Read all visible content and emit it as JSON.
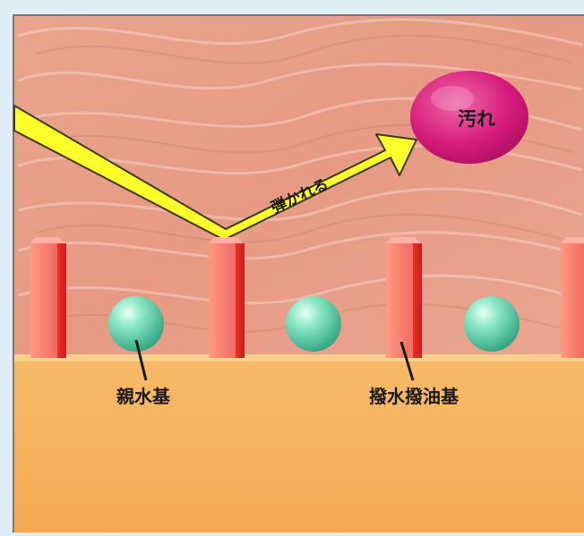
{
  "diagram": {
    "labels": {
      "repelled": "弾かれる",
      "dirt": "汚れ",
      "hydrophilic_group": "親水基",
      "water_oil_repellent_group": "撥水撥油基"
    },
    "colors": {
      "page_background": "#dfeef5",
      "upper_region": "#e9a38a",
      "lower_region": "#f6b25e",
      "arrow_fill": "#ffff2a",
      "arrow_outline": "#3a3a2a",
      "dirt_fill": "#d61a7a",
      "pillar_face": "#f06b5e",
      "pillar_side": "#e8342f",
      "sphere_fill": "#5fd6b0",
      "text": "#1a1a1a"
    }
  }
}
